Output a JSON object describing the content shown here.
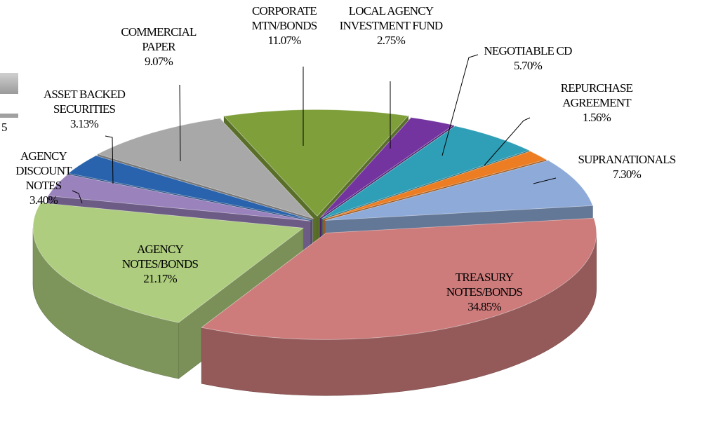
{
  "partial_text": "5",
  "chart_data": {
    "type": "pie3d",
    "categories": [
      "TREASURY NOTES/BONDS",
      "AGENCY NOTES/BONDS",
      "AGENCY DISCOUNT NOTES",
      "ASSET BACKED SECURITIES",
      "COMMERCIAL PAPER",
      "CORPORATE MTN/BONDS",
      "LOCAL AGENCY INVESTMENT FUND",
      "NEGOTIABLE CD",
      "REPURCHASE AGREEMENT",
      "SUPRANATIONALS"
    ],
    "values": [
      34.85,
      21.17,
      3.4,
      3.13,
      9.07,
      11.07,
      2.75,
      5.7,
      1.56,
      7.3
    ],
    "value_labels": [
      "34.85%",
      "21.17%",
      "3.40%",
      "3.13%",
      "9.07%",
      "11.07%",
      "2.75%",
      "5.70%",
      "1.56%",
      "7.30%"
    ],
    "colors": [
      "#cd7b7b",
      "#aecd7e",
      "#9a82bd",
      "#2a63ad",
      "#a8a8a8",
      "#7f9f3b",
      "#7434a0",
      "#2e9fb6",
      "#ec7d22",
      "#8eaad8"
    ]
  }
}
